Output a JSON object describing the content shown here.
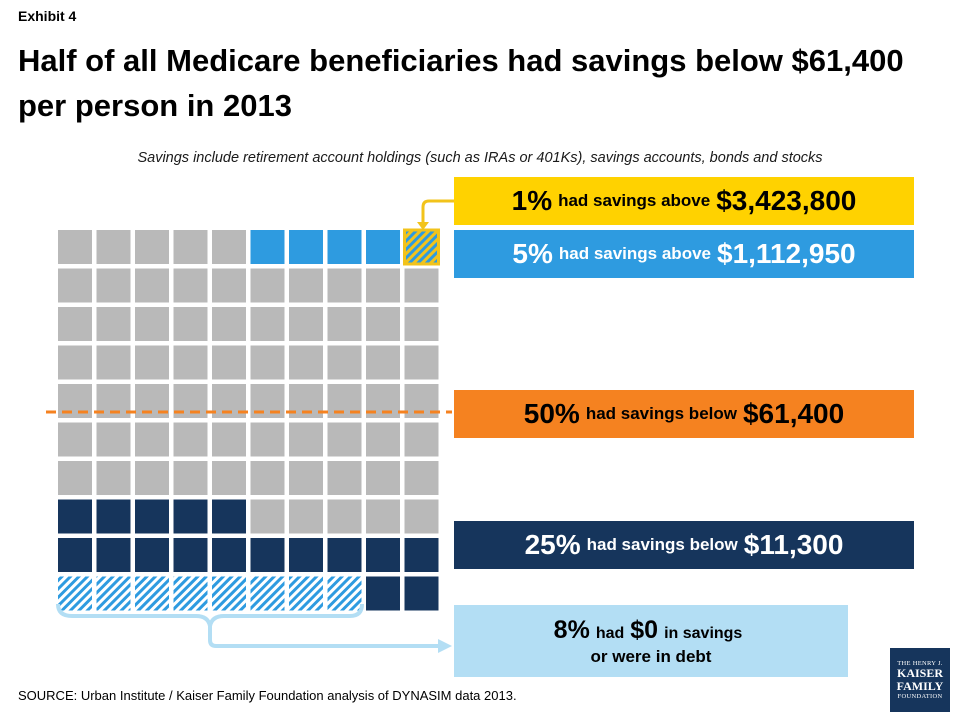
{
  "header": {
    "exhibit": "Exhibit 4",
    "title": "Half of all Medicare beneficiaries had savings below $61,400 per person in 2013",
    "subtitle": "Savings include retirement account holdings (such as IRAs or 401Ks), savings accounts, bonds and stocks"
  },
  "callouts": {
    "top1": {
      "percent": "1%",
      "text": "had savings above",
      "amount": "$3,423,800"
    },
    "top5": {
      "percent": "5%",
      "text": "had savings above",
      "amount": "$1,112,950"
    },
    "median": {
      "percent": "50%",
      "text": "had savings below",
      "amount": "$61,400"
    },
    "bottom25": {
      "percent": "25%",
      "text": "had savings below",
      "amount": "$11,300"
    },
    "zero": {
      "percent": "8%",
      "text1": "had",
      "amount": "$0",
      "text2": "in savings",
      "line2": "or were in debt"
    }
  },
  "waffle": {
    "total_squares": 100,
    "rows": 10,
    "cols": 10,
    "categories": [
      {
        "key": "top1",
        "count": 1,
        "color": "#F2C31B",
        "hatched": true
      },
      {
        "key": "top5",
        "count": 4,
        "color": "#2E9BE0",
        "hatched": false
      },
      {
        "key": "middle",
        "count": 70,
        "color": "#B9B9B9",
        "hatched": false
      },
      {
        "key": "bottom25",
        "count": 17,
        "color": "#16355C",
        "hatched": false
      },
      {
        "key": "zero",
        "count": 8,
        "color": "#2E9BE0",
        "hatched": true
      }
    ]
  },
  "colors": {
    "gray": "#B9B9B9",
    "blue": "#2E9BE0",
    "navy": "#16355C",
    "orange": "#F58220",
    "yellow": "#FFD200",
    "lightblue": "#B3DEF4"
  },
  "footer": {
    "source": "SOURCE: Urban Institute / Kaiser Family Foundation analysis of DYNASIM data 2013.",
    "logo": {
      "line1": "THE HENRY J.",
      "line2": "KAISER",
      "line3": "FAMILY",
      "line4": "FOUNDATION"
    }
  }
}
